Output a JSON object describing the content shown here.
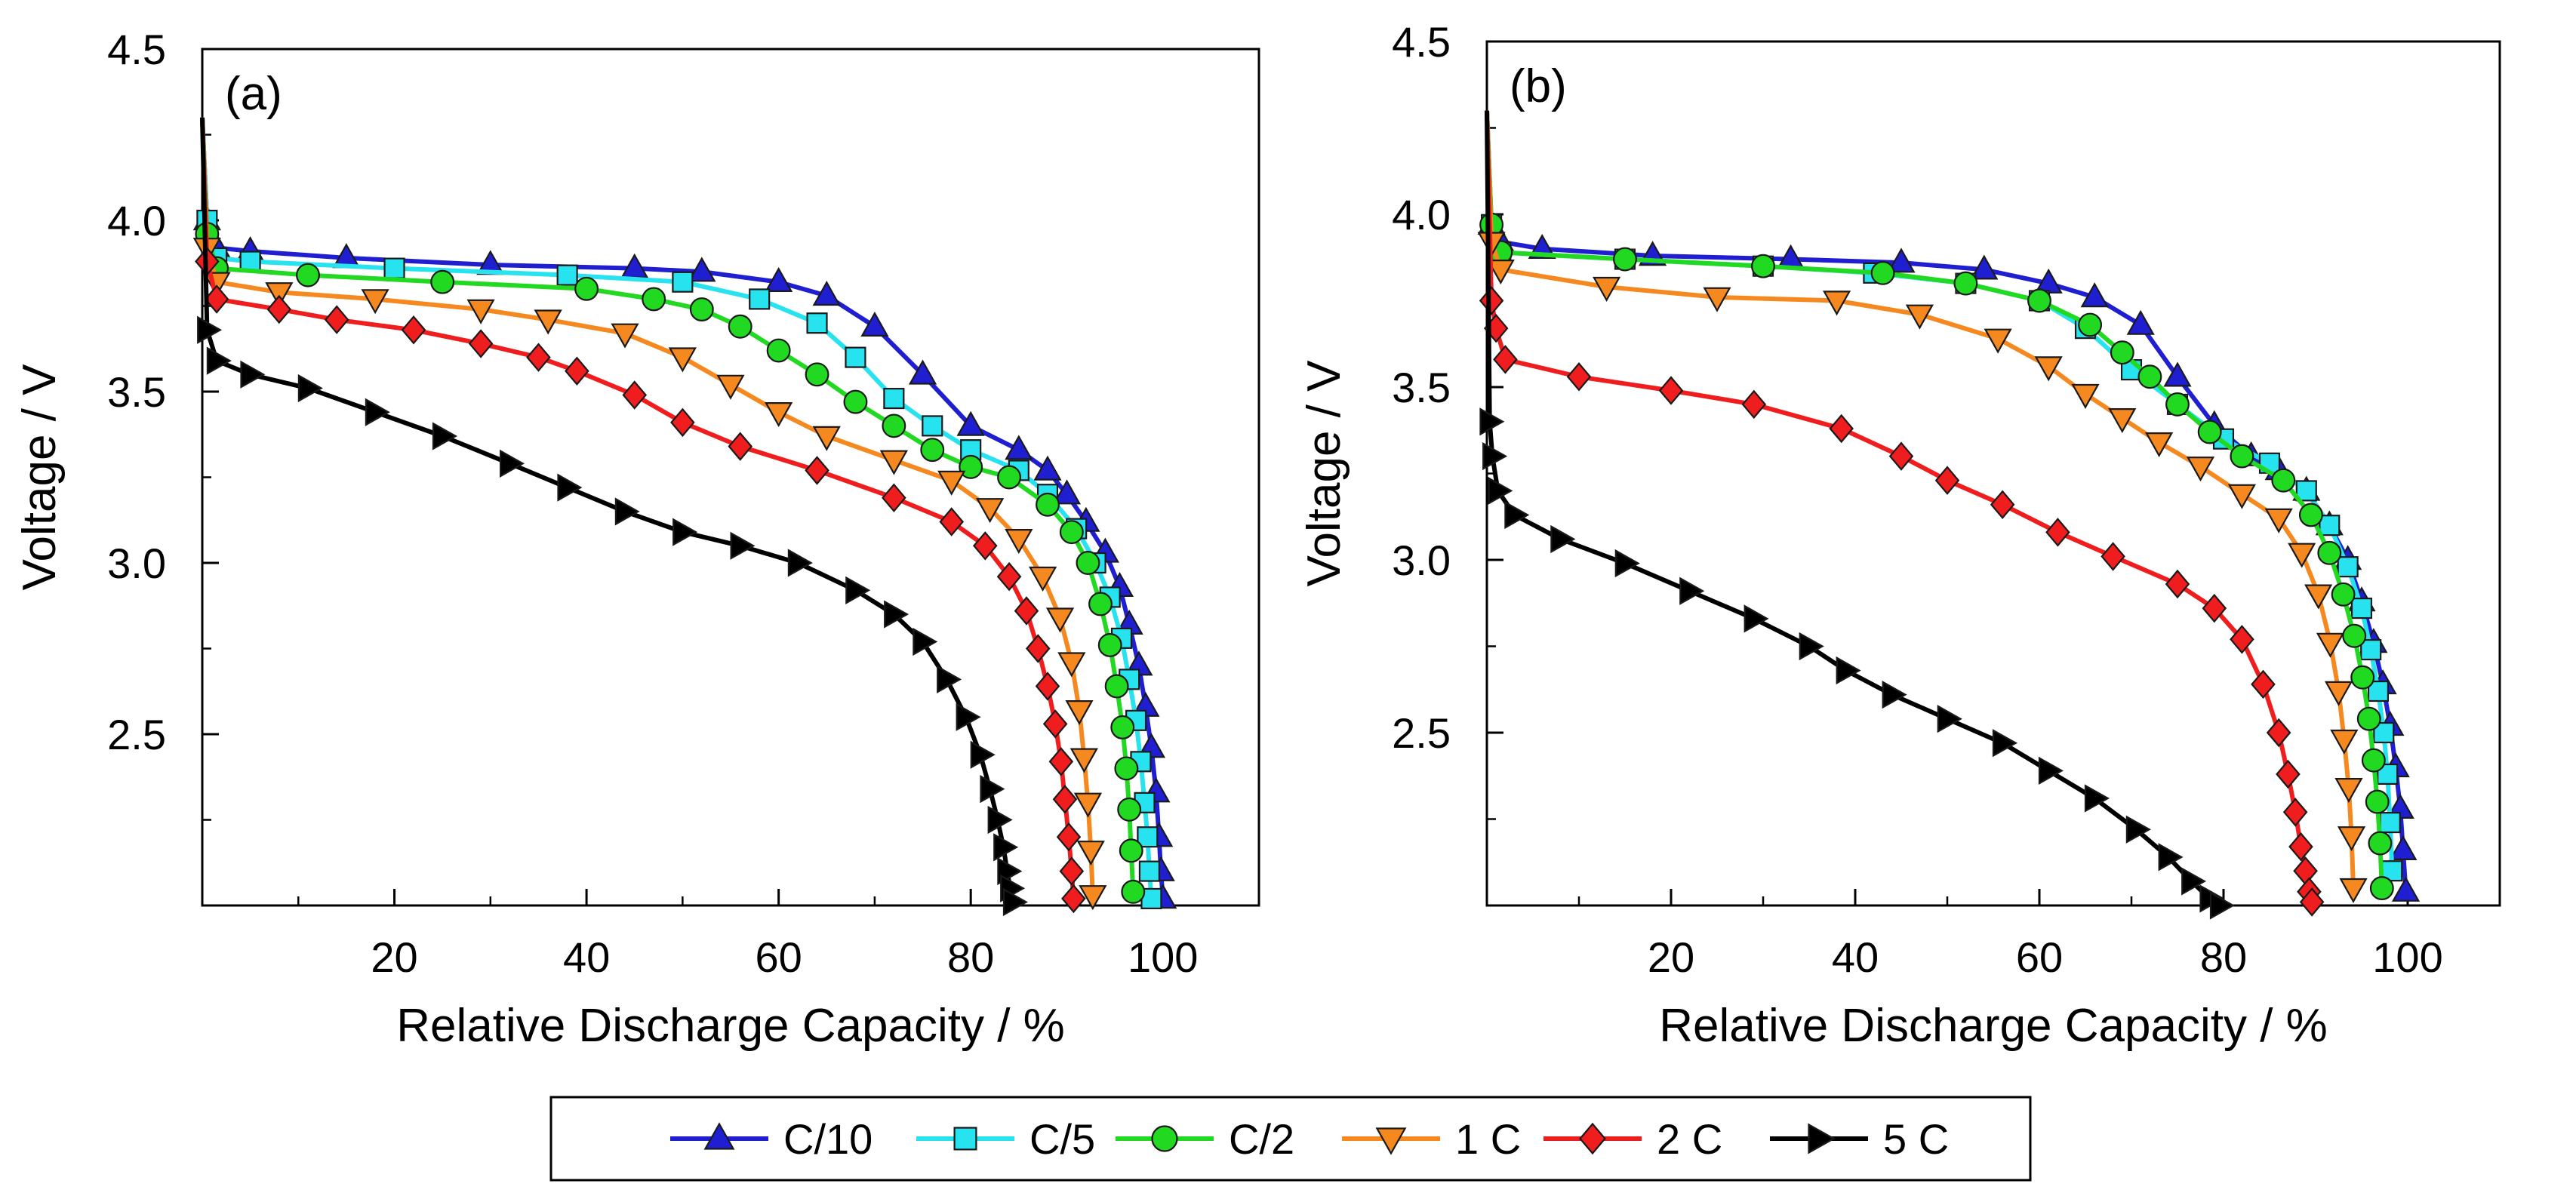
{
  "chart_data": [
    {
      "type": "line",
      "panel_label": "(a)",
      "xlabel": "Relative Discharge Capacity / %",
      "ylabel": "Voltage / V",
      "xlim": [
        0,
        110
      ],
      "ylim": [
        2.0,
        4.5
      ],
      "xticks": [
        20,
        40,
        60,
        80,
        100
      ],
      "xtick_labels": [
        "20",
        "40",
        "60",
        "80",
        "100"
      ],
      "yticks": [
        2.5,
        3.0,
        3.5,
        4.0,
        4.5
      ],
      "ytick_labels": [
        "2.5",
        "3.0",
        "3.5",
        "4.0",
        "4.5"
      ],
      "grid": false,
      "series": [
        {
          "name": "C/10",
          "color": "#1f1fd1",
          "marker": "triangle-up",
          "x": [
            0,
            0.5,
            1.5,
            5,
            15,
            30,
            45,
            52,
            60,
            65,
            70,
            75,
            80,
            85,
            88,
            90,
            92,
            94,
            95.5,
            96.5,
            97.5,
            98.2,
            98.8,
            99.3,
            99.6,
            99.8,
            100
          ],
          "y": [
            4.3,
            4.0,
            3.92,
            3.91,
            3.89,
            3.87,
            3.86,
            3.85,
            3.82,
            3.78,
            3.69,
            3.55,
            3.4,
            3.33,
            3.27,
            3.2,
            3.12,
            3.03,
            2.93,
            2.82,
            2.7,
            2.58,
            2.46,
            2.33,
            2.2,
            2.1,
            2.02
          ]
        },
        {
          "name": "C/5",
          "color": "#27e3f0",
          "marker": "square",
          "x": [
            0,
            0.5,
            1.5,
            5,
            20,
            38,
            50,
            58,
            64,
            68,
            72,
            76,
            80,
            85,
            88,
            91,
            93,
            94.5,
            95.7,
            96.5,
            97.2,
            97.7,
            98.1,
            98.4,
            98.6,
            98.8
          ],
          "y": [
            4.3,
            4.0,
            3.89,
            3.88,
            3.86,
            3.84,
            3.82,
            3.77,
            3.7,
            3.6,
            3.48,
            3.4,
            3.33,
            3.27,
            3.2,
            3.1,
            3.0,
            2.9,
            2.78,
            2.66,
            2.54,
            2.42,
            2.3,
            2.2,
            2.1,
            2.02
          ]
        },
        {
          "name": "C/2",
          "color": "#22d922",
          "marker": "circle",
          "x": [
            0,
            0.5,
            1.5,
            11,
            25,
            40,
            47,
            52,
            56,
            60,
            64,
            68,
            72,
            76,
            80,
            84,
            88,
            90.5,
            92.2,
            93.5,
            94.5,
            95.2,
            95.8,
            96.2,
            96.5,
            96.7,
            96.9
          ],
          "y": [
            4.3,
            3.96,
            3.86,
            3.84,
            3.82,
            3.8,
            3.77,
            3.74,
            3.69,
            3.62,
            3.55,
            3.47,
            3.4,
            3.33,
            3.28,
            3.25,
            3.17,
            3.09,
            3.0,
            2.88,
            2.76,
            2.64,
            2.52,
            2.4,
            2.28,
            2.16,
            2.04
          ]
        },
        {
          "name": "1 C",
          "color": "#f5891f",
          "marker": "triangle-down",
          "x": [
            0,
            0.5,
            1.5,
            8,
            18,
            29,
            36,
            44,
            50,
            55,
            60,
            65,
            72,
            78,
            82,
            85,
            87.5,
            89.3,
            90.5,
            91.3,
            91.8,
            92.2,
            92.5,
            92.7
          ],
          "y": [
            4.3,
            3.92,
            3.82,
            3.79,
            3.77,
            3.74,
            3.71,
            3.67,
            3.6,
            3.52,
            3.44,
            3.37,
            3.3,
            3.24,
            3.16,
            3.07,
            2.96,
            2.84,
            2.71,
            2.57,
            2.43,
            2.3,
            2.16,
            2.03
          ]
        },
        {
          "name": "2 C",
          "color": "#ef1d1d",
          "marker": "diamond",
          "x": [
            0,
            0.5,
            1.5,
            8,
            14,
            22,
            29,
            35,
            39,
            45,
            50,
            56,
            64,
            72,
            78,
            81.5,
            84,
            85.8,
            87,
            88,
            88.8,
            89.4,
            89.8,
            90.2,
            90.5,
            90.7
          ],
          "y": [
            4.3,
            3.88,
            3.77,
            3.74,
            3.71,
            3.68,
            3.64,
            3.6,
            3.56,
            3.49,
            3.41,
            3.34,
            3.27,
            3.19,
            3.12,
            3.05,
            2.96,
            2.86,
            2.75,
            2.64,
            2.53,
            2.42,
            2.31,
            2.2,
            2.1,
            2.02
          ]
        },
        {
          "name": "5 C",
          "color": "#000000",
          "marker": "triangle-right",
          "x": [
            0,
            0.5,
            1.5,
            5,
            11,
            18,
            25,
            32,
            38,
            44,
            50,
            56,
            62,
            68,
            72,
            75,
            77.5,
            79.5,
            81,
            82,
            82.8,
            83.4,
            83.8,
            84.1,
            84.4
          ],
          "y": [
            4.3,
            3.68,
            3.59,
            3.55,
            3.51,
            3.44,
            3.37,
            3.29,
            3.22,
            3.15,
            3.09,
            3.05,
            3.0,
            2.92,
            2.85,
            2.77,
            2.66,
            2.55,
            2.44,
            2.34,
            2.25,
            2.17,
            2.1,
            2.05,
            2.01
          ]
        }
      ]
    },
    {
      "type": "line",
      "panel_label": "(b)",
      "xlabel": "Relative Discharge Capacity / %",
      "ylabel": "Voltage / V",
      "xlim": [
        0,
        110
      ],
      "ylim": [
        2.0,
        4.5
      ],
      "xticks": [
        20,
        40,
        60,
        80,
        100
      ],
      "xtick_labels": [
        "20",
        "40",
        "60",
        "80",
        "100"
      ],
      "yticks": [
        2.5,
        3.0,
        3.5,
        4.0,
        4.5
      ],
      "ytick_labels": [
        "2.5",
        "3.0",
        "3.5",
        "4.0",
        "4.5"
      ],
      "grid": false,
      "series": [
        {
          "name": "C/10",
          "color": "#1f1fd1",
          "marker": "triangle-up",
          "x": [
            0,
            0.5,
            1.5,
            6,
            18,
            33,
            45,
            54,
            61,
            66,
            71,
            75,
            79,
            83,
            86,
            89,
            91.5,
            93.5,
            95,
            96.3,
            97.3,
            98.1,
            98.7,
            99.2,
            99.5,
            99.8
          ],
          "y": [
            4.3,
            3.97,
            3.92,
            3.9,
            3.88,
            3.87,
            3.86,
            3.84,
            3.8,
            3.76,
            3.68,
            3.53,
            3.39,
            3.3,
            3.26,
            3.2,
            3.1,
            3.0,
            2.88,
            2.76,
            2.64,
            2.52,
            2.4,
            2.28,
            2.16,
            2.04
          ]
        },
        {
          "name": "C/5",
          "color": "#27e3f0",
          "marker": "square",
          "x": [
            0,
            0.5,
            1.5,
            15,
            30,
            42,
            52,
            60,
            65,
            70,
            75,
            80,
            85,
            89,
            91.5,
            93.5,
            95,
            96,
            96.8,
            97.4,
            97.8,
            98.1,
            98.3
          ],
          "y": [
            4.3,
            3.97,
            3.89,
            3.87,
            3.85,
            3.83,
            3.8,
            3.75,
            3.67,
            3.55,
            3.45,
            3.35,
            3.28,
            3.2,
            3.1,
            2.98,
            2.86,
            2.74,
            2.62,
            2.5,
            2.38,
            2.24,
            2.1
          ]
        },
        {
          "name": "C/2",
          "color": "#22d922",
          "marker": "circle",
          "x": [
            0,
            0.5,
            1.5,
            15,
            30,
            43,
            52,
            60,
            65.5,
            69,
            72,
            75,
            78.5,
            82,
            86.5,
            89.5,
            91.5,
            93,
            94.2,
            95.1,
            95.8,
            96.3,
            96.7,
            97,
            97.2
          ],
          "y": [
            4.3,
            3.97,
            3.89,
            3.87,
            3.85,
            3.83,
            3.8,
            3.75,
            3.68,
            3.6,
            3.53,
            3.45,
            3.37,
            3.3,
            3.23,
            3.13,
            3.02,
            2.9,
            2.78,
            2.66,
            2.54,
            2.42,
            2.3,
            2.18,
            2.05
          ]
        },
        {
          "name": "1 C",
          "color": "#f5891f",
          "marker": "triangle-down",
          "x": [
            0,
            0.5,
            1.5,
            13,
            25,
            38,
            47,
            55.5,
            61,
            65,
            69,
            73,
            77.5,
            82,
            86,
            88.5,
            90.3,
            91.6,
            92.5,
            93.1,
            93.6,
            93.9,
            94.1
          ],
          "y": [
            4.3,
            3.92,
            3.84,
            3.79,
            3.76,
            3.75,
            3.71,
            3.64,
            3.56,
            3.48,
            3.41,
            3.34,
            3.27,
            3.19,
            3.12,
            3.02,
            2.9,
            2.76,
            2.62,
            2.48,
            2.34,
            2.2,
            2.05
          ]
        },
        {
          "name": "2 C",
          "color": "#ef1d1d",
          "marker": "diamond",
          "x": [
            0,
            0.5,
            1,
            2,
            10,
            20,
            29,
            38.5,
            45,
            50,
            56,
            62,
            68,
            75,
            79,
            82,
            84.3,
            86,
            87,
            87.8,
            88.4,
            88.9,
            89.3,
            89.6
          ],
          "y": [
            4.3,
            3.75,
            3.67,
            3.58,
            3.53,
            3.49,
            3.45,
            3.38,
            3.3,
            3.23,
            3.16,
            3.08,
            3.01,
            2.93,
            2.86,
            2.77,
            2.64,
            2.5,
            2.38,
            2.27,
            2.17,
            2.1,
            2.04,
            2.01
          ]
        },
        {
          "name": "5 C",
          "color": "#000000",
          "marker": "triangle-right",
          "x": [
            0,
            0.3,
            0.6,
            1.2,
            3,
            8,
            15,
            22,
            29,
            35,
            39,
            44,
            50,
            56,
            61,
            66,
            70.5,
            74,
            76.5,
            78.5,
            79.6
          ],
          "y": [
            4.3,
            3.4,
            3.3,
            3.2,
            3.13,
            3.06,
            2.99,
            2.91,
            2.83,
            2.75,
            2.68,
            2.61,
            2.54,
            2.47,
            2.39,
            2.31,
            2.22,
            2.14,
            2.07,
            2.02,
            2.0
          ]
        }
      ]
    }
  ],
  "legend": {
    "position": "bottom-center",
    "items": [
      {
        "name": "C/10",
        "color": "#1f1fd1",
        "marker": "triangle-up"
      },
      {
        "name": "C/5",
        "color": "#27e3f0",
        "marker": "square"
      },
      {
        "name": "C/2",
        "color": "#22d922",
        "marker": "circle"
      },
      {
        "name": "1 C",
        "color": "#f5891f",
        "marker": "triangle-down"
      },
      {
        "name": "2 C",
        "color": "#ef1d1d",
        "marker": "diamond"
      },
      {
        "name": "5 C",
        "color": "#000000",
        "marker": "triangle-right"
      }
    ]
  }
}
